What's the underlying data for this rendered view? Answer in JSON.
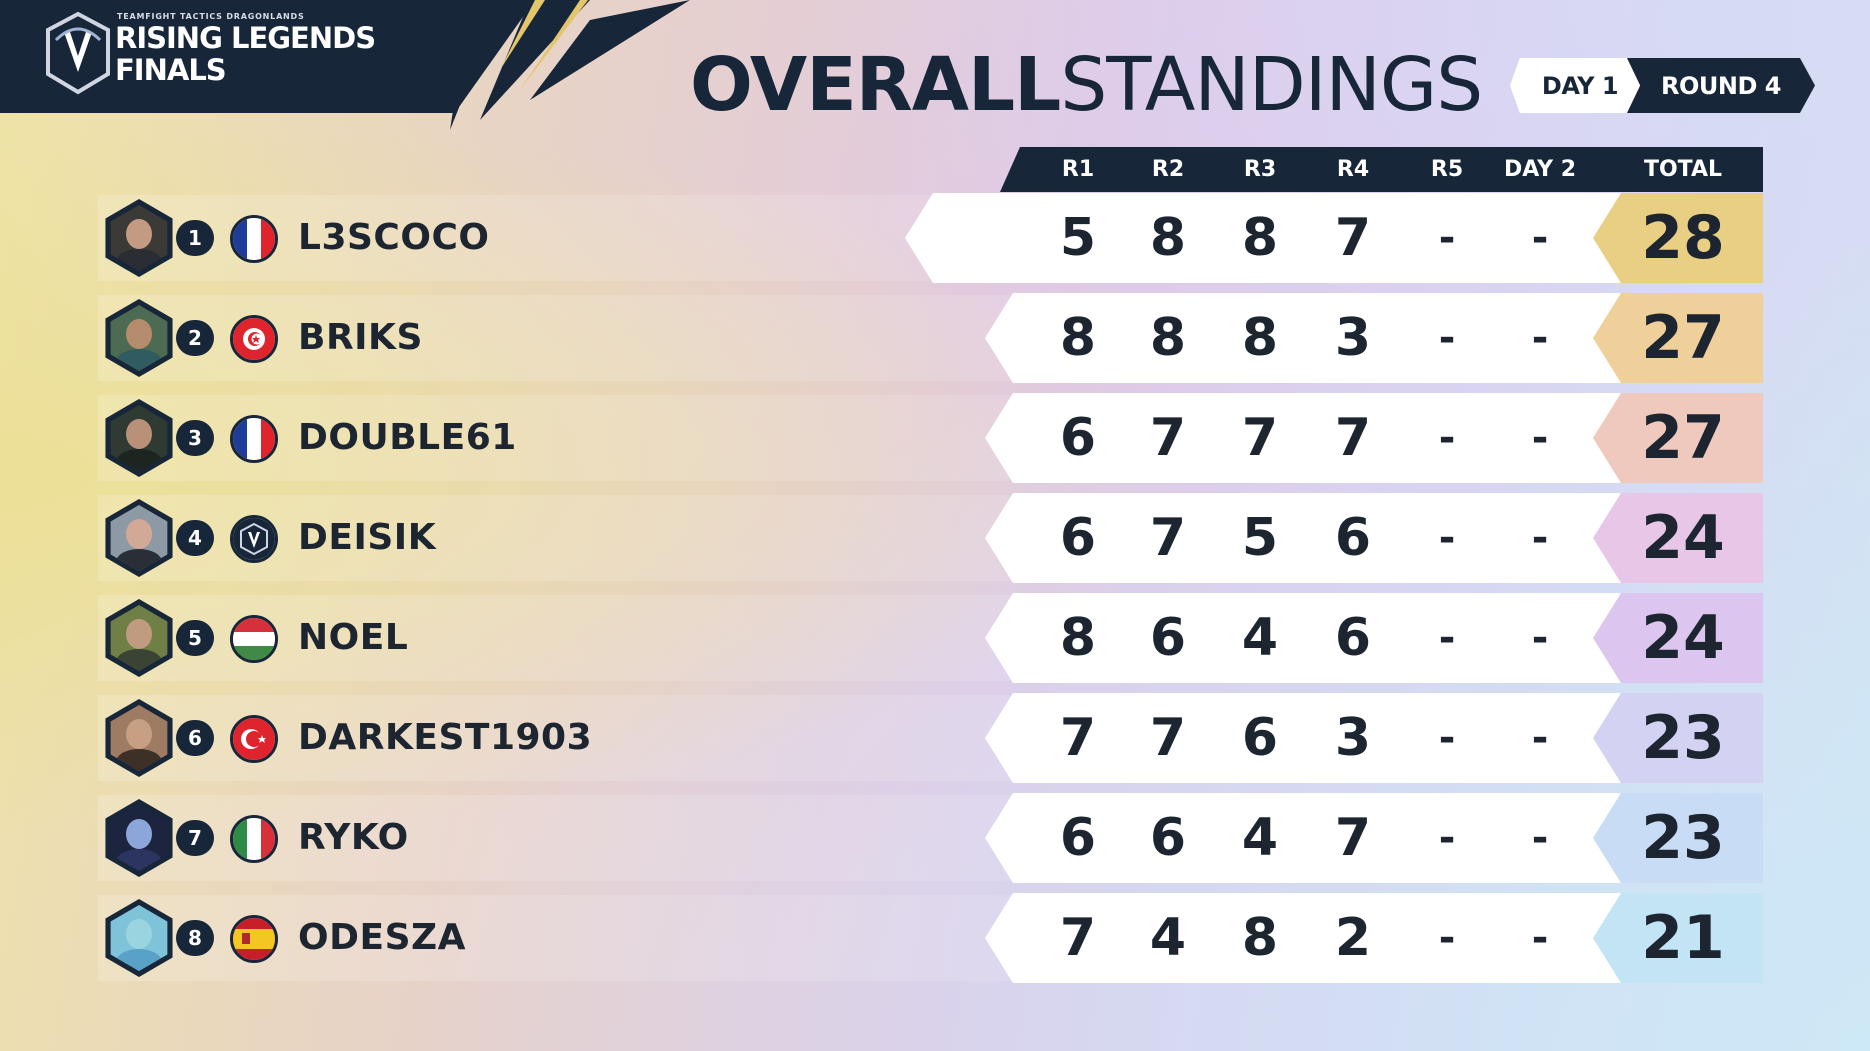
{
  "brand": {
    "small": "TEAMFIGHT TACTICS DRAGONLANDS",
    "line1": "RISING LEGENDS",
    "line2": "FINALS"
  },
  "title": {
    "bold": "OVERALL",
    "light": "STANDINGS"
  },
  "badges": {
    "day": "DAY 1",
    "round": "ROUND 4"
  },
  "columns": [
    "R1",
    "R2",
    "R3",
    "R4",
    "R5",
    "DAY 2",
    "TOTAL"
  ],
  "colors": {
    "navy": "#172638",
    "total_gradient": [
      "#e8cf83",
      "#efcf9a",
      "#f0c9be",
      "#e7c6e8",
      "#dcc6ef",
      "#d3d2f3",
      "#c8dcf5",
      "#c3e4f5"
    ]
  },
  "players": [
    {
      "rank": "1",
      "name": "L3SCOCO",
      "flag": "france-flag-icon",
      "scores": [
        "5",
        "8",
        "8",
        "7",
        "-",
        "-"
      ],
      "total": "28"
    },
    {
      "rank": "2",
      "name": "BRIKS",
      "flag": "tunisia-flag-icon",
      "scores": [
        "8",
        "8",
        "8",
        "3",
        "-",
        "-"
      ],
      "total": "27"
    },
    {
      "rank": "3",
      "name": "DOUBLE61",
      "flag": "france-flag-icon",
      "scores": [
        "6",
        "7",
        "7",
        "7",
        "-",
        "-"
      ],
      "total": "27"
    },
    {
      "rank": "4",
      "name": "DEISIK",
      "flag": "rising-legends-emblem-icon",
      "scores": [
        "6",
        "7",
        "5",
        "6",
        "-",
        "-"
      ],
      "total": "24"
    },
    {
      "rank": "5",
      "name": "NOEL",
      "flag": "hungary-flag-icon",
      "scores": [
        "8",
        "6",
        "4",
        "6",
        "-",
        "-"
      ],
      "total": "24"
    },
    {
      "rank": "6",
      "name": "DARKEST1903",
      "flag": "turkey-flag-icon",
      "scores": [
        "7",
        "7",
        "6",
        "3",
        "-",
        "-"
      ],
      "total": "23"
    },
    {
      "rank": "7",
      "name": "RYKO",
      "flag": "italy-flag-icon",
      "scores": [
        "6",
        "6",
        "4",
        "7",
        "-",
        "-"
      ],
      "total": "23"
    },
    {
      "rank": "8",
      "name": "ODESZA",
      "flag": "spain-flag-icon",
      "scores": [
        "7",
        "4",
        "8",
        "2",
        "-",
        "-"
      ],
      "total": "21"
    }
  ]
}
